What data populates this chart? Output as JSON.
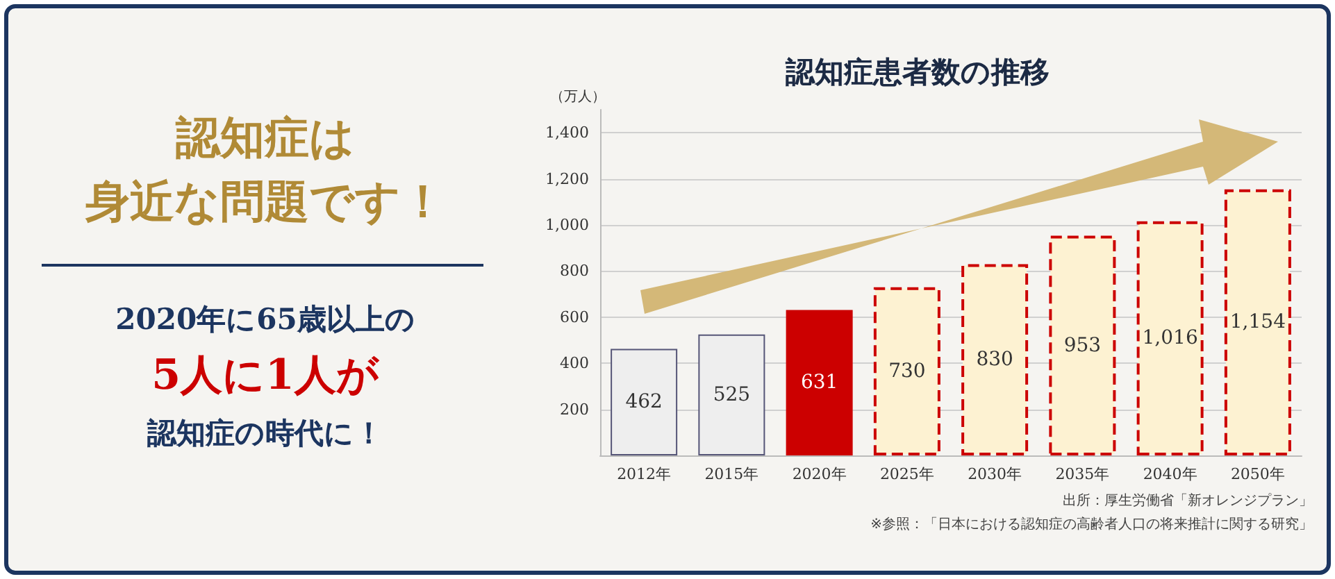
{
  "chart_data": [
    {
      "type": "other",
      "title": "認知症は",
      "subtitle": "身近な問題です！",
      "annotations": [
        "2020年に65歳以上の",
        "5人に1人が",
        "認知症の時代に！"
      ]
    },
    {
      "type": "bar",
      "title": "認知症患者数の推移",
      "ylabel": "（万人）",
      "categories": [
        "2012年",
        "2015年",
        "2020年",
        "2025年",
        "2030年",
        "2035年",
        "2040年",
        "2050年"
      ],
      "values": [
        462,
        525,
        631,
        730,
        830,
        953,
        1016,
        1154
      ],
      "colors": [
        "#eeeeee",
        "#eeeeee",
        "#cc0000",
        "#fdf2d2",
        "#fdf2d2",
        "#fdf2d2",
        "#fdf2d2",
        "#fdf2d2"
      ],
      "ylim": [
        0,
        1500
      ],
      "yticks": [
        200,
        400,
        600,
        800,
        {
          "value": 1000,
          "label": "1,000"
        },
        {
          "value": 1200,
          "label": "1,200"
        },
        {
          "value": 1400,
          "label": "1,400"
        }
      ],
      "grid": "y",
      "value_labels": [
        "462",
        "525",
        "631",
        "730",
        "830",
        "953",
        "1,016",
        "1,154"
      ],
      "annotations": [
        "出所：厚生労働省「新オレンジプラン」",
        "※参照：「日本における認知症の高齢者人口の将来推計に関する研究」"
      ]
    }
  ]
}
